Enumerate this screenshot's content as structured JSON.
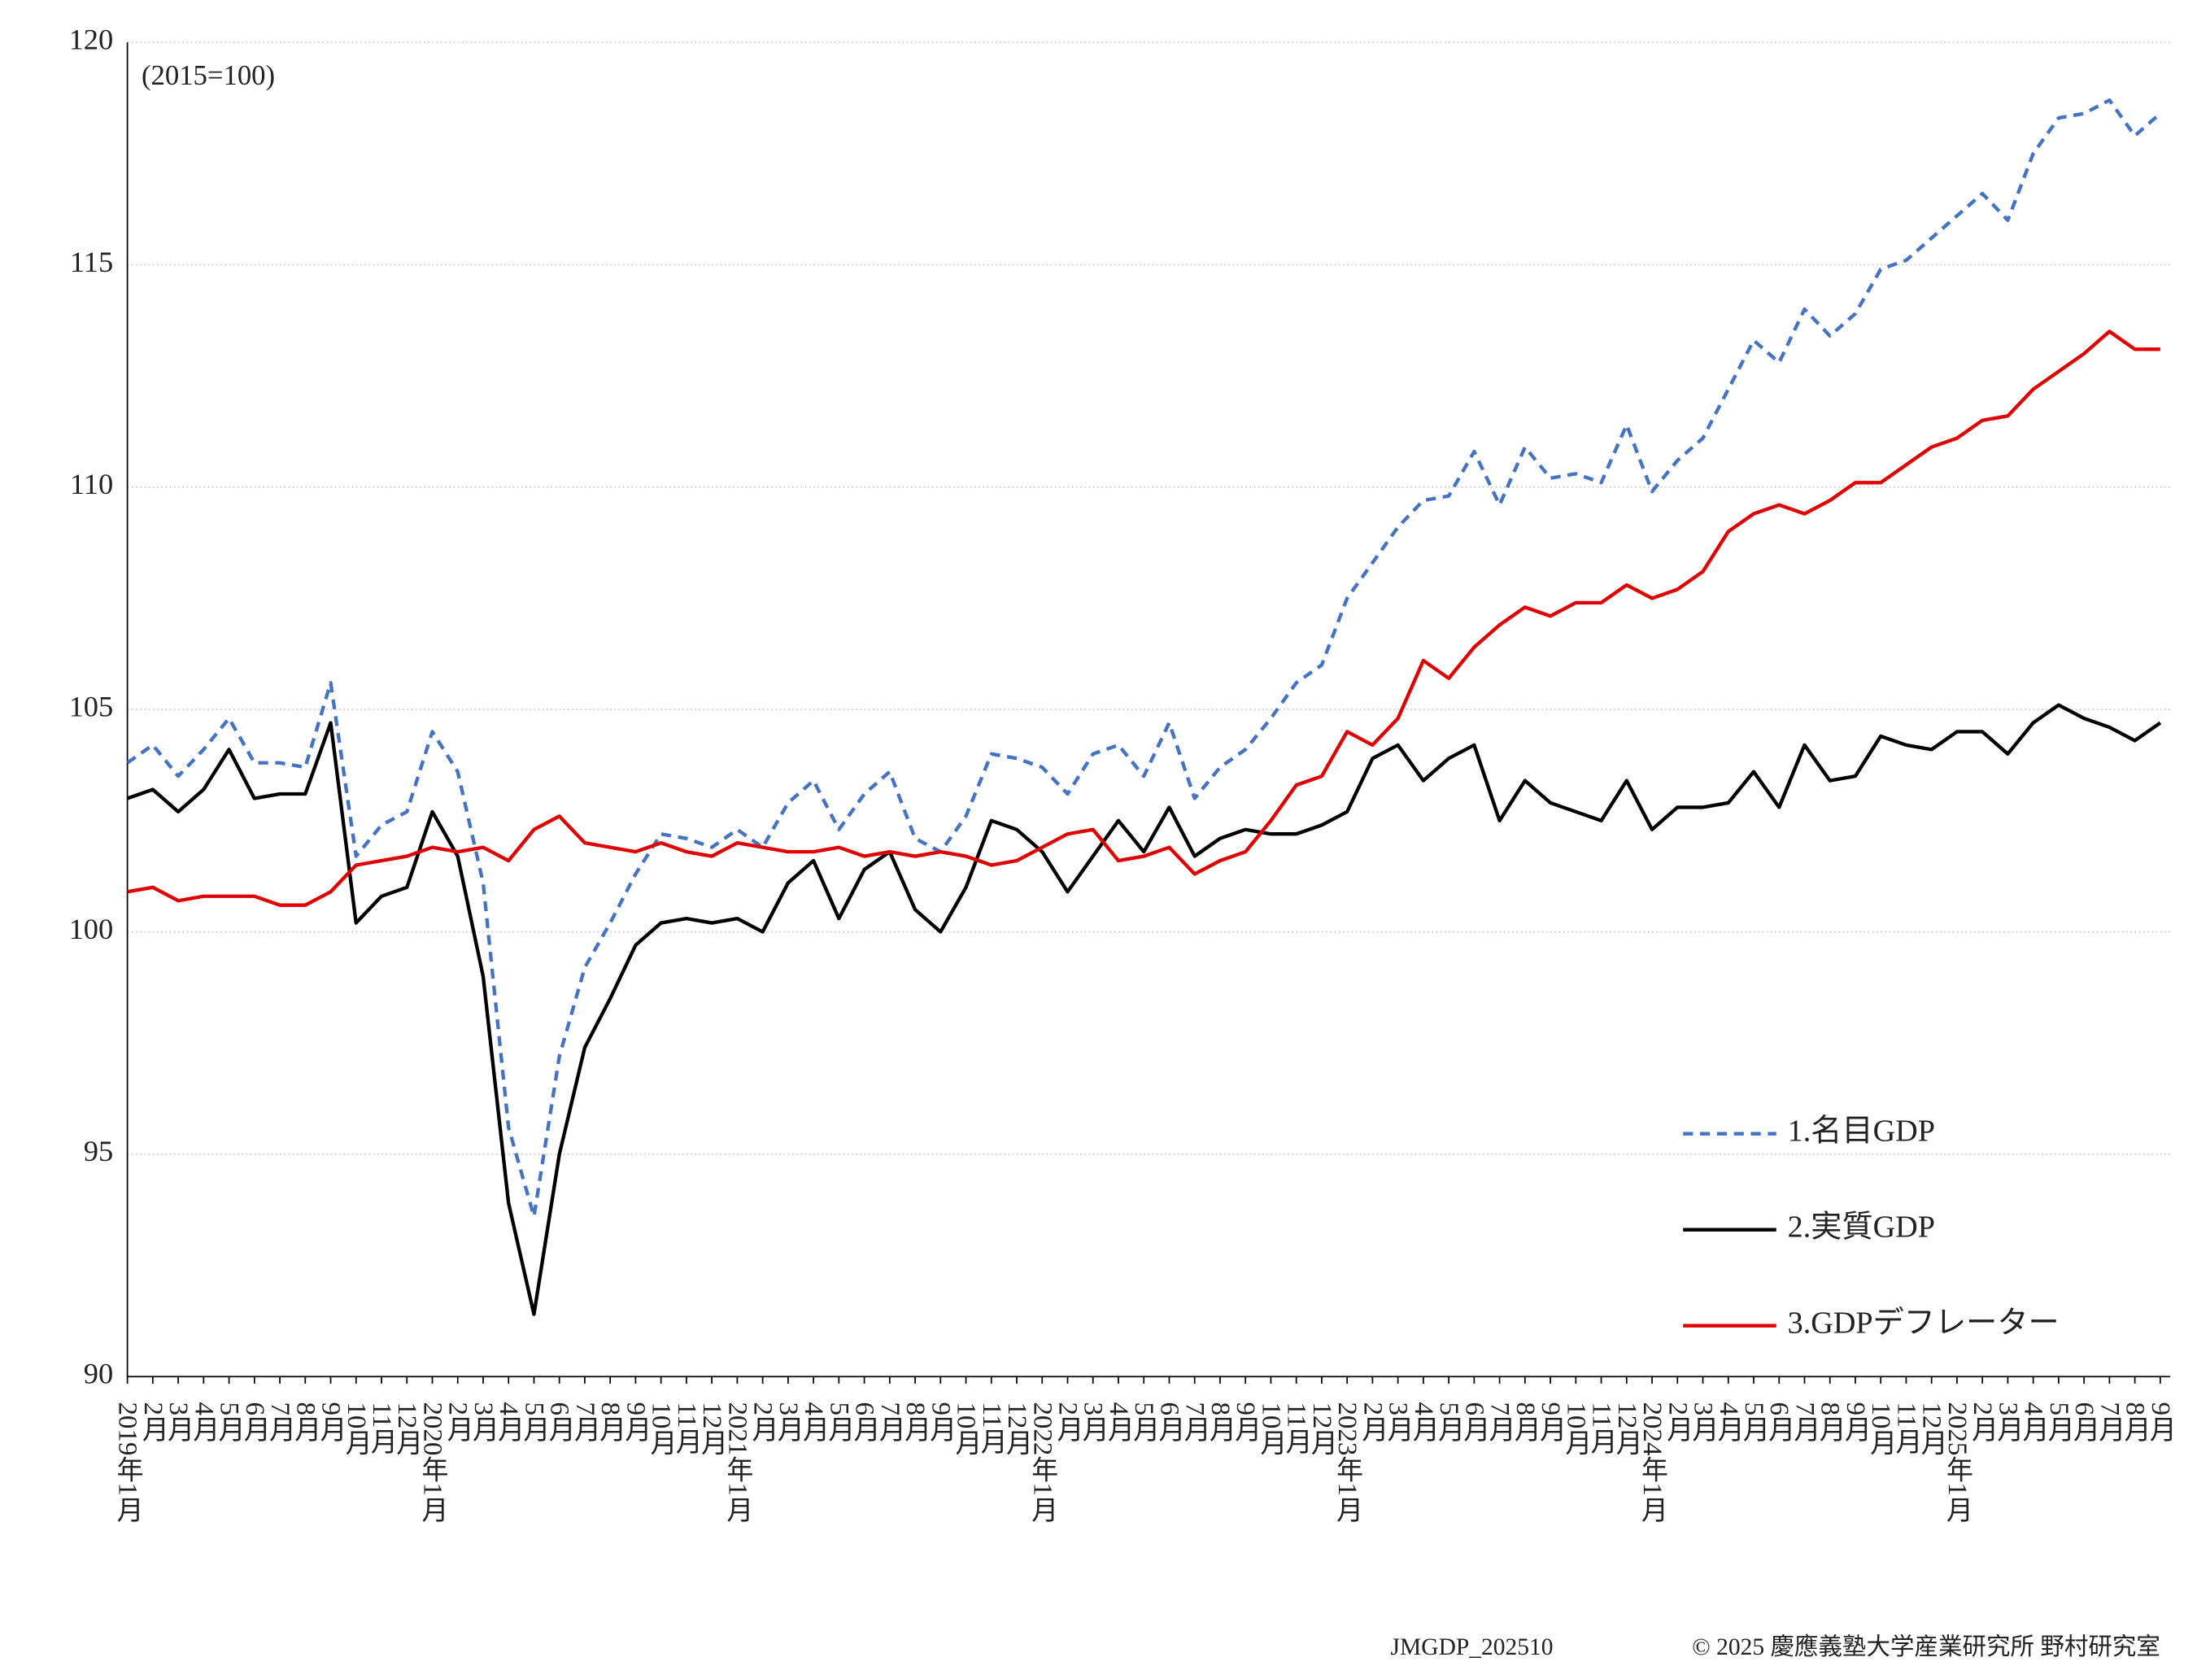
{
  "chart_data": {
    "type": "line",
    "annotation": "(2015=100)",
    "categories": [
      "2019年1月",
      "2月",
      "3月",
      "4月",
      "5月",
      "6月",
      "7月",
      "8月",
      "9月",
      "10月",
      "11月",
      "12月",
      "2020年1月",
      "2月",
      "3月",
      "4月",
      "5月",
      "6月",
      "7月",
      "8月",
      "9月",
      "10月",
      "11月",
      "12月",
      "2021年1月",
      "2月",
      "3月",
      "4月",
      "5月",
      "6月",
      "7月",
      "8月",
      "9月",
      "10月",
      "11月",
      "12月",
      "2022年1月",
      "2月",
      "3月",
      "4月",
      "5月",
      "6月",
      "7月",
      "8月",
      "9月",
      "10月",
      "11月",
      "12月",
      "2023年1月",
      "2月",
      "3月",
      "4月",
      "5月",
      "6月",
      "7月",
      "8月",
      "9月",
      "10月",
      "11月",
      "12月",
      "2024年1月",
      "2月",
      "3月",
      "4月",
      "5月",
      "6月",
      "7月",
      "8月",
      "9月",
      "10月",
      "11月",
      "12月",
      "2025年1月",
      "2月",
      "3月",
      "4月",
      "5月",
      "6月",
      "7月",
      "8月",
      "9月"
    ],
    "series": [
      {
        "name": "1.名目GDP",
        "color": "#4472c4",
        "dash": "dashed",
        "values": [
          103.8,
          104.2,
          103.5,
          104.1,
          104.8,
          103.8,
          103.8,
          103.7,
          105.6,
          101.7,
          102.4,
          102.7,
          104.5,
          103.6,
          101.1,
          95.6,
          93.6,
          97.2,
          99.2,
          100.2,
          101.3,
          102.2,
          102.1,
          101.9,
          102.3,
          101.9,
          102.9,
          103.4,
          102.3,
          103.1,
          103.6,
          102.1,
          101.8,
          102.6,
          104.0,
          103.9,
          103.7,
          103.1,
          104.0,
          104.2,
          103.5,
          104.7,
          103.0,
          103.7,
          104.1,
          104.8,
          105.6,
          106.0,
          107.5,
          108.3,
          109.1,
          109.7,
          109.8,
          110.8,
          109.6,
          110.9,
          110.2,
          110.3,
          110.1,
          111.4,
          109.9,
          110.6,
          111.1,
          112.2,
          113.3,
          112.8,
          114.0,
          113.4,
          113.9,
          114.9,
          115.1,
          115.6,
          116.1,
          116.6,
          116.0,
          117.5,
          118.3,
          118.4,
          118.7,
          117.9,
          118.4
        ]
      },
      {
        "name": "2.実質GDP",
        "color": "#000000",
        "dash": "solid",
        "values": [
          103.0,
          103.2,
          102.7,
          103.2,
          104.1,
          103.0,
          103.1,
          103.1,
          104.7,
          100.2,
          100.8,
          101.0,
          102.7,
          101.7,
          99.0,
          93.9,
          91.4,
          95.0,
          97.4,
          98.5,
          99.7,
          100.2,
          100.3,
          100.2,
          100.3,
          100.0,
          101.1,
          101.6,
          100.3,
          101.4,
          101.8,
          100.5,
          100.0,
          101.0,
          102.5,
          102.3,
          101.8,
          100.9,
          101.7,
          102.5,
          101.8,
          102.8,
          101.7,
          102.1,
          102.3,
          102.2,
          102.2,
          102.4,
          102.7,
          103.9,
          104.2,
          103.4,
          103.9,
          104.2,
          102.5,
          103.4,
          102.9,
          102.7,
          102.5,
          103.4,
          102.3,
          102.8,
          102.8,
          102.9,
          103.6,
          102.8,
          104.2,
          103.4,
          103.5,
          104.4,
          104.2,
          104.1,
          104.5,
          104.5,
          104.0,
          104.7,
          105.1,
          104.8,
          104.6,
          104.3,
          104.7
        ]
      },
      {
        "name": "3.GDPデフレーター",
        "color": "#e00000",
        "dash": "solid",
        "values": [
          100.9,
          101.0,
          100.7,
          100.8,
          100.8,
          100.8,
          100.6,
          100.6,
          100.9,
          101.5,
          101.6,
          101.7,
          101.9,
          101.8,
          101.9,
          101.6,
          102.3,
          102.6,
          102.0,
          101.9,
          101.8,
          102.0,
          101.8,
          101.7,
          102.0,
          101.9,
          101.8,
          101.8,
          101.9,
          101.7,
          101.8,
          101.7,
          101.8,
          101.7,
          101.5,
          101.6,
          101.9,
          102.2,
          102.3,
          101.6,
          101.7,
          101.9,
          101.3,
          101.6,
          101.8,
          102.5,
          103.3,
          103.5,
          104.5,
          104.2,
          104.8,
          106.1,
          105.7,
          106.4,
          106.9,
          107.3,
          107.1,
          107.4,
          107.4,
          107.8,
          107.5,
          107.7,
          108.1,
          109.0,
          109.4,
          109.6,
          109.4,
          109.7,
          110.1,
          110.1,
          110.5,
          110.9,
          111.1,
          111.5,
          111.6,
          112.2,
          112.6,
          113.0,
          113.5,
          113.1,
          113.1
        ]
      }
    ],
    "ylim": [
      90,
      120
    ],
    "yticks": [
      90,
      95,
      100,
      105,
      110,
      115,
      120
    ],
    "grid": true,
    "legend": "lower right",
    "footer_id": "JMGDP_202510",
    "footer_credit": "© 2025 慶應義塾大学産業研究所 野村研究室"
  }
}
